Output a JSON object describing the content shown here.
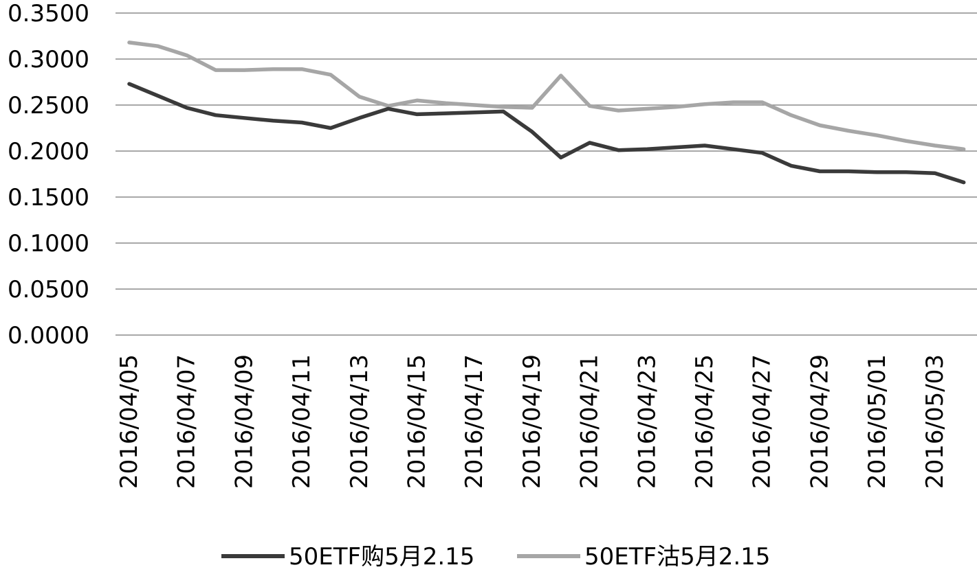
{
  "chart_data": {
    "type": "line",
    "title": "",
    "xlabel": "",
    "ylabel": "",
    "ylim": [
      0,
      0.35
    ],
    "y_ticks": [
      "0.0000",
      "0.0500",
      "0.1000",
      "0.1500",
      "0.2000",
      "0.2500",
      "0.3000",
      "0.3500"
    ],
    "grid": true,
    "legend_position": "bottom",
    "x": [
      "2016/04/05",
      "2016/04/06",
      "2016/04/07",
      "2016/04/08",
      "2016/04/09",
      "2016/04/10",
      "2016/04/11",
      "2016/04/12",
      "2016/04/13",
      "2016/04/14",
      "2016/04/15",
      "2016/04/16",
      "2016/04/17",
      "2016/04/18",
      "2016/04/19",
      "2016/04/20",
      "2016/04/21",
      "2016/04/22",
      "2016/04/23",
      "2016/04/24",
      "2016/04/25",
      "2016/04/26",
      "2016/04/27",
      "2016/04/28",
      "2016/04/29",
      "2016/04/30",
      "2016/05/01",
      "2016/05/02",
      "2016/05/03",
      "2016/05/04"
    ],
    "x_tick_labels": [
      "2016/04/05",
      "2016/04/07",
      "2016/04/09",
      "2016/04/11",
      "2016/04/13",
      "2016/04/15",
      "2016/04/17",
      "2016/04/19",
      "2016/04/21",
      "2016/04/23",
      "2016/04/25",
      "2016/04/27",
      "2016/04/29",
      "2016/05/01",
      "2016/05/03"
    ],
    "series": [
      {
        "name": "50ETF购5月2.15",
        "color": "#3a3a3a",
        "values": [
          0.273,
          0.26,
          0.247,
          0.239,
          0.236,
          0.233,
          0.231,
          0.225,
          0.236,
          0.246,
          0.24,
          0.241,
          0.242,
          0.243,
          0.221,
          0.193,
          0.209,
          0.201,
          0.202,
          0.204,
          0.206,
          0.202,
          0.198,
          0.184,
          0.178,
          0.178,
          0.177,
          0.177,
          0.176,
          0.166
        ]
      },
      {
        "name": "50ETF沽5月2.15",
        "color": "#a6a6a6",
        "values": [
          0.318,
          0.314,
          0.304,
          0.288,
          0.288,
          0.289,
          0.289,
          0.283,
          0.259,
          0.249,
          0.255,
          0.252,
          0.25,
          0.248,
          0.247,
          0.282,
          0.249,
          0.244,
          0.246,
          0.248,
          0.251,
          0.253,
          0.253,
          0.239,
          0.228,
          0.222,
          0.217,
          0.211,
          0.206,
          0.202
        ]
      }
    ]
  }
}
